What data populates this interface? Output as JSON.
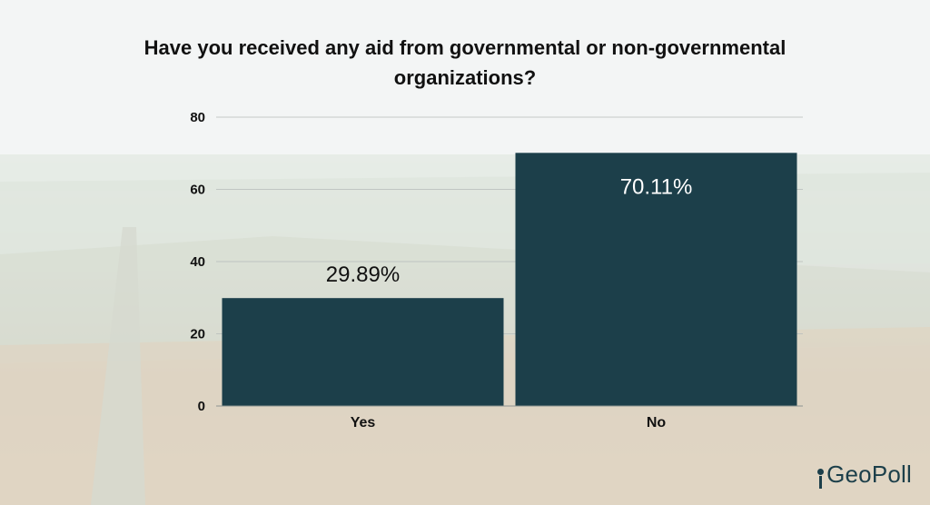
{
  "chart_data": {
    "type": "bar",
    "title": "Have you received any aid from governmental or non-governmental organizations?",
    "categories": [
      "Yes",
      "No"
    ],
    "values": [
      29.89,
      70.11
    ],
    "data_labels": [
      "29.89%",
      "70.11%"
    ],
    "xlabel": "",
    "ylabel": "",
    "ylim": [
      0,
      80
    ],
    "yticks": [
      "0",
      "20",
      "40",
      "60",
      "80"
    ],
    "grid": true,
    "bar_color": "#1c3f4a"
  },
  "brand": {
    "logo_text": "GeoPoll"
  }
}
